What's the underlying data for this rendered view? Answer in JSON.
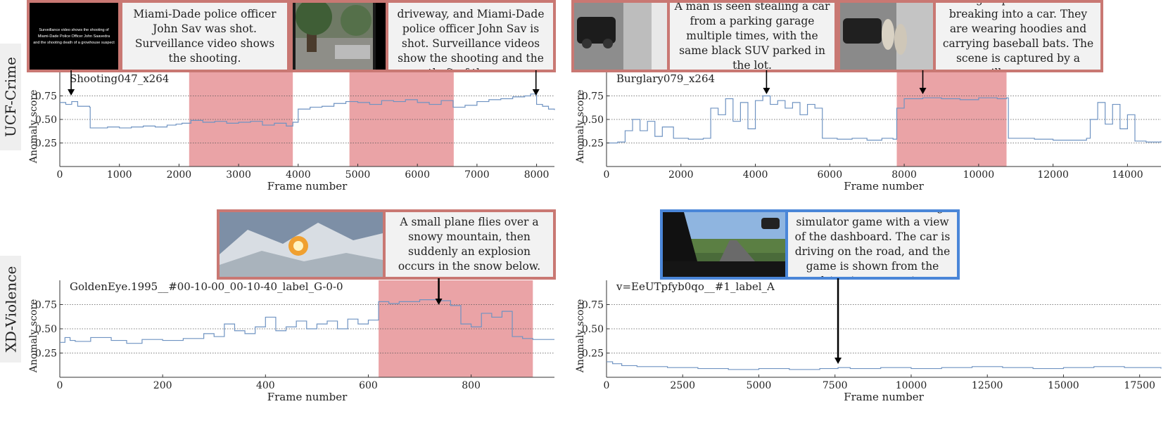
{
  "colors": {
    "crime_border": "#c97873",
    "normal_border": "#4a86d8",
    "anomaly_shade": "#eaa3a6",
    "line": "#6f93c2",
    "caption_bg": "#f2f2f2"
  },
  "rows": [
    {
      "label": "UCF-Crime"
    },
    {
      "label": "XD-Violence"
    }
  ],
  "captions": [
    {
      "text": "Miami-Dade police officer John Sav was shot. Surveillance video shows the shooting."
    },
    {
      "text": "A man steals a car from a driveway, and Miami-Dade police officer John Sav is shot. Surveillance videos show the shooting and the theft of the car."
    },
    {
      "text": "A man is seen stealing a car from a parking garage multiple times, with the same black SUV parked in the lot."
    },
    {
      "text": "A group of men are breaking into a car. They are wearing hoodies and carrying baseball bats. The scene is captured by a surveillance camera."
    },
    {
      "text": "A small plane flies over a snowy mountain, then suddenly an explosion occurs in the snow below."
    },
    {
      "text": "The scene is a car driving simulator game with a view of the dashboard. The car is driving on the road, and the game is shown from the driver's perspective"
    }
  ],
  "thumb_text": "Surveillance video shows the shooting of Miami-Dade Police Officer John Saavedra and the shooting death of a growhouse suspect",
  "thumb_text_lines": [
    "Surveillance video shows the shooting of",
    "Miami-Dade Police Officer John Saavedra",
    "and the shooting death of a growhouse suspect"
  ],
  "chart_data": [
    {
      "type": "line",
      "video": "Shooting047_x264",
      "xlabel": "Frame number",
      "ylabel": "Anomaly score",
      "xlim": [
        0,
        8300
      ],
      "ylim": [
        0,
        1
      ],
      "xticks": [
        0,
        1000,
        2000,
        3000,
        4000,
        5000,
        6000,
        7000,
        8000
      ],
      "yticks": [
        0.25,
        0.5,
        0.75
      ],
      "grid": "horizontal-dotted",
      "anomaly_ranges": [
        [
          2170,
          3910
        ],
        [
          4860,
          6610
        ]
      ],
      "arrow_frames": [
        190,
        7990
      ],
      "series": [
        {
          "x": [
            0,
            100,
            200,
            300,
            400,
            500,
            510,
            800,
            1000,
            1200,
            1400,
            1600,
            1800,
            1950,
            2050,
            2200,
            2400,
            2600,
            2800,
            3000,
            3200,
            3400,
            3600,
            3800,
            3910,
            4000,
            4200,
            4400,
            4600,
            4800,
            5000,
            5200,
            5400,
            5600,
            5800,
            6000,
            6200,
            6400,
            6600,
            6800,
            7000,
            7200,
            7400,
            7600,
            7800,
            7900,
            8000,
            8100,
            8200,
            8300
          ],
          "values": [
            0.68,
            0.66,
            0.69,
            0.64,
            0.64,
            0.63,
            0.41,
            0.42,
            0.41,
            0.42,
            0.43,
            0.42,
            0.44,
            0.45,
            0.46,
            0.49,
            0.47,
            0.48,
            0.46,
            0.47,
            0.48,
            0.44,
            0.46,
            0.43,
            0.47,
            0.61,
            0.63,
            0.64,
            0.67,
            0.69,
            0.68,
            0.66,
            0.7,
            0.69,
            0.71,
            0.68,
            0.66,
            0.7,
            0.63,
            0.65,
            0.69,
            0.71,
            0.72,
            0.74,
            0.75,
            0.77,
            0.66,
            0.64,
            0.61,
            0.6
          ]
        }
      ]
    },
    {
      "type": "line",
      "video": "Burglary079_x264",
      "xlabel": "Frame number",
      "ylabel": "Anomaly score",
      "xlim": [
        0,
        14900
      ],
      "ylim": [
        0,
        1
      ],
      "xticks": [
        0,
        2000,
        4000,
        6000,
        8000,
        10000,
        12000,
        14000
      ],
      "yticks": [
        0.25,
        0.5,
        0.75
      ],
      "grid": "horizontal-dotted",
      "anomaly_ranges": [
        [
          7800,
          10750
        ]
      ],
      "arrow_frames": [
        4300,
        8500
      ],
      "series": [
        {
          "x": [
            0,
            300,
            500,
            700,
            900,
            1100,
            1300,
            1500,
            1800,
            2200,
            2600,
            2800,
            3000,
            3200,
            3400,
            3600,
            3800,
            4000,
            4200,
            4400,
            4600,
            4800,
            5000,
            5200,
            5400,
            5600,
            5800,
            6200,
            6600,
            7000,
            7400,
            7700,
            7800,
            8000,
            8500,
            9000,
            9500,
            10000,
            10500,
            10750,
            10800,
            11500,
            12000,
            12500,
            12900,
            13000,
            13200,
            13400,
            13600,
            13800,
            14000,
            14200,
            14500,
            14900
          ],
          "values": [
            0.25,
            0.26,
            0.38,
            0.5,
            0.38,
            0.48,
            0.32,
            0.42,
            0.3,
            0.29,
            0.3,
            0.62,
            0.55,
            0.72,
            0.48,
            0.68,
            0.4,
            0.7,
            0.75,
            0.66,
            0.7,
            0.62,
            0.68,
            0.55,
            0.66,
            0.62,
            0.3,
            0.29,
            0.3,
            0.28,
            0.3,
            0.29,
            0.62,
            0.72,
            0.73,
            0.72,
            0.71,
            0.73,
            0.72,
            0.73,
            0.3,
            0.29,
            0.28,
            0.28,
            0.3,
            0.5,
            0.68,
            0.45,
            0.66,
            0.4,
            0.55,
            0.27,
            0.26,
            0.27
          ]
        }
      ]
    },
    {
      "type": "line",
      "video": "GoldenEye.1995__#00-10-00_00-10-40_label_G-0-0",
      "xlabel": "Frame number",
      "ylabel": "Anomaly score",
      "xlim": [
        0,
        962
      ],
      "ylim": [
        0,
        1
      ],
      "xticks": [
        0,
        200,
        400,
        600,
        800
      ],
      "yticks": [
        0.25,
        0.5,
        0.75
      ],
      "grid": "horizontal-dotted",
      "anomaly_ranges": [
        [
          620,
          920
        ]
      ],
      "arrow_frames": [
        737
      ],
      "series": [
        {
          "x": [
            0,
            10,
            20,
            30,
            60,
            100,
            130,
            160,
            200,
            240,
            280,
            300,
            320,
            340,
            360,
            380,
            400,
            420,
            440,
            460,
            480,
            500,
            520,
            540,
            560,
            580,
            600,
            620,
            640,
            660,
            700,
            740,
            760,
            780,
            800,
            820,
            840,
            860,
            880,
            900,
            920,
            962
          ],
          "values": [
            0.36,
            0.41,
            0.38,
            0.37,
            0.41,
            0.38,
            0.35,
            0.39,
            0.38,
            0.4,
            0.45,
            0.42,
            0.55,
            0.48,
            0.45,
            0.52,
            0.62,
            0.48,
            0.52,
            0.58,
            0.5,
            0.55,
            0.58,
            0.5,
            0.6,
            0.55,
            0.59,
            0.78,
            0.76,
            0.78,
            0.8,
            0.79,
            0.74,
            0.55,
            0.52,
            0.66,
            0.62,
            0.68,
            0.42,
            0.4,
            0.39,
            0.39
          ]
        }
      ]
    },
    {
      "type": "line",
      "video": "v=EeUTpfyb0qo__#1_label_A",
      "xlabel": "Frame number",
      "ylabel": "Anomaly score",
      "xlim": [
        0,
        18200
      ],
      "ylim": [
        0,
        1
      ],
      "xticks": [
        0,
        2500,
        5000,
        7500,
        10000,
        12500,
        15000,
        17500
      ],
      "yticks": [
        0.25,
        0.5,
        0.75
      ],
      "grid": "horizontal-dotted",
      "anomaly_ranges": [],
      "arrow_frames": [
        7600
      ],
      "series": [
        {
          "x": [
            0,
            200,
            500,
            1000,
            2000,
            3000,
            4000,
            5000,
            6000,
            7000,
            7600,
            8000,
            9000,
            10000,
            11000,
            12000,
            13000,
            14000,
            15000,
            16000,
            17000,
            18200
          ],
          "values": [
            0.16,
            0.14,
            0.12,
            0.11,
            0.1,
            0.09,
            0.08,
            0.09,
            0.08,
            0.09,
            0.1,
            0.09,
            0.1,
            0.09,
            0.1,
            0.11,
            0.1,
            0.09,
            0.1,
            0.11,
            0.1,
            0.09
          ]
        }
      ]
    }
  ]
}
